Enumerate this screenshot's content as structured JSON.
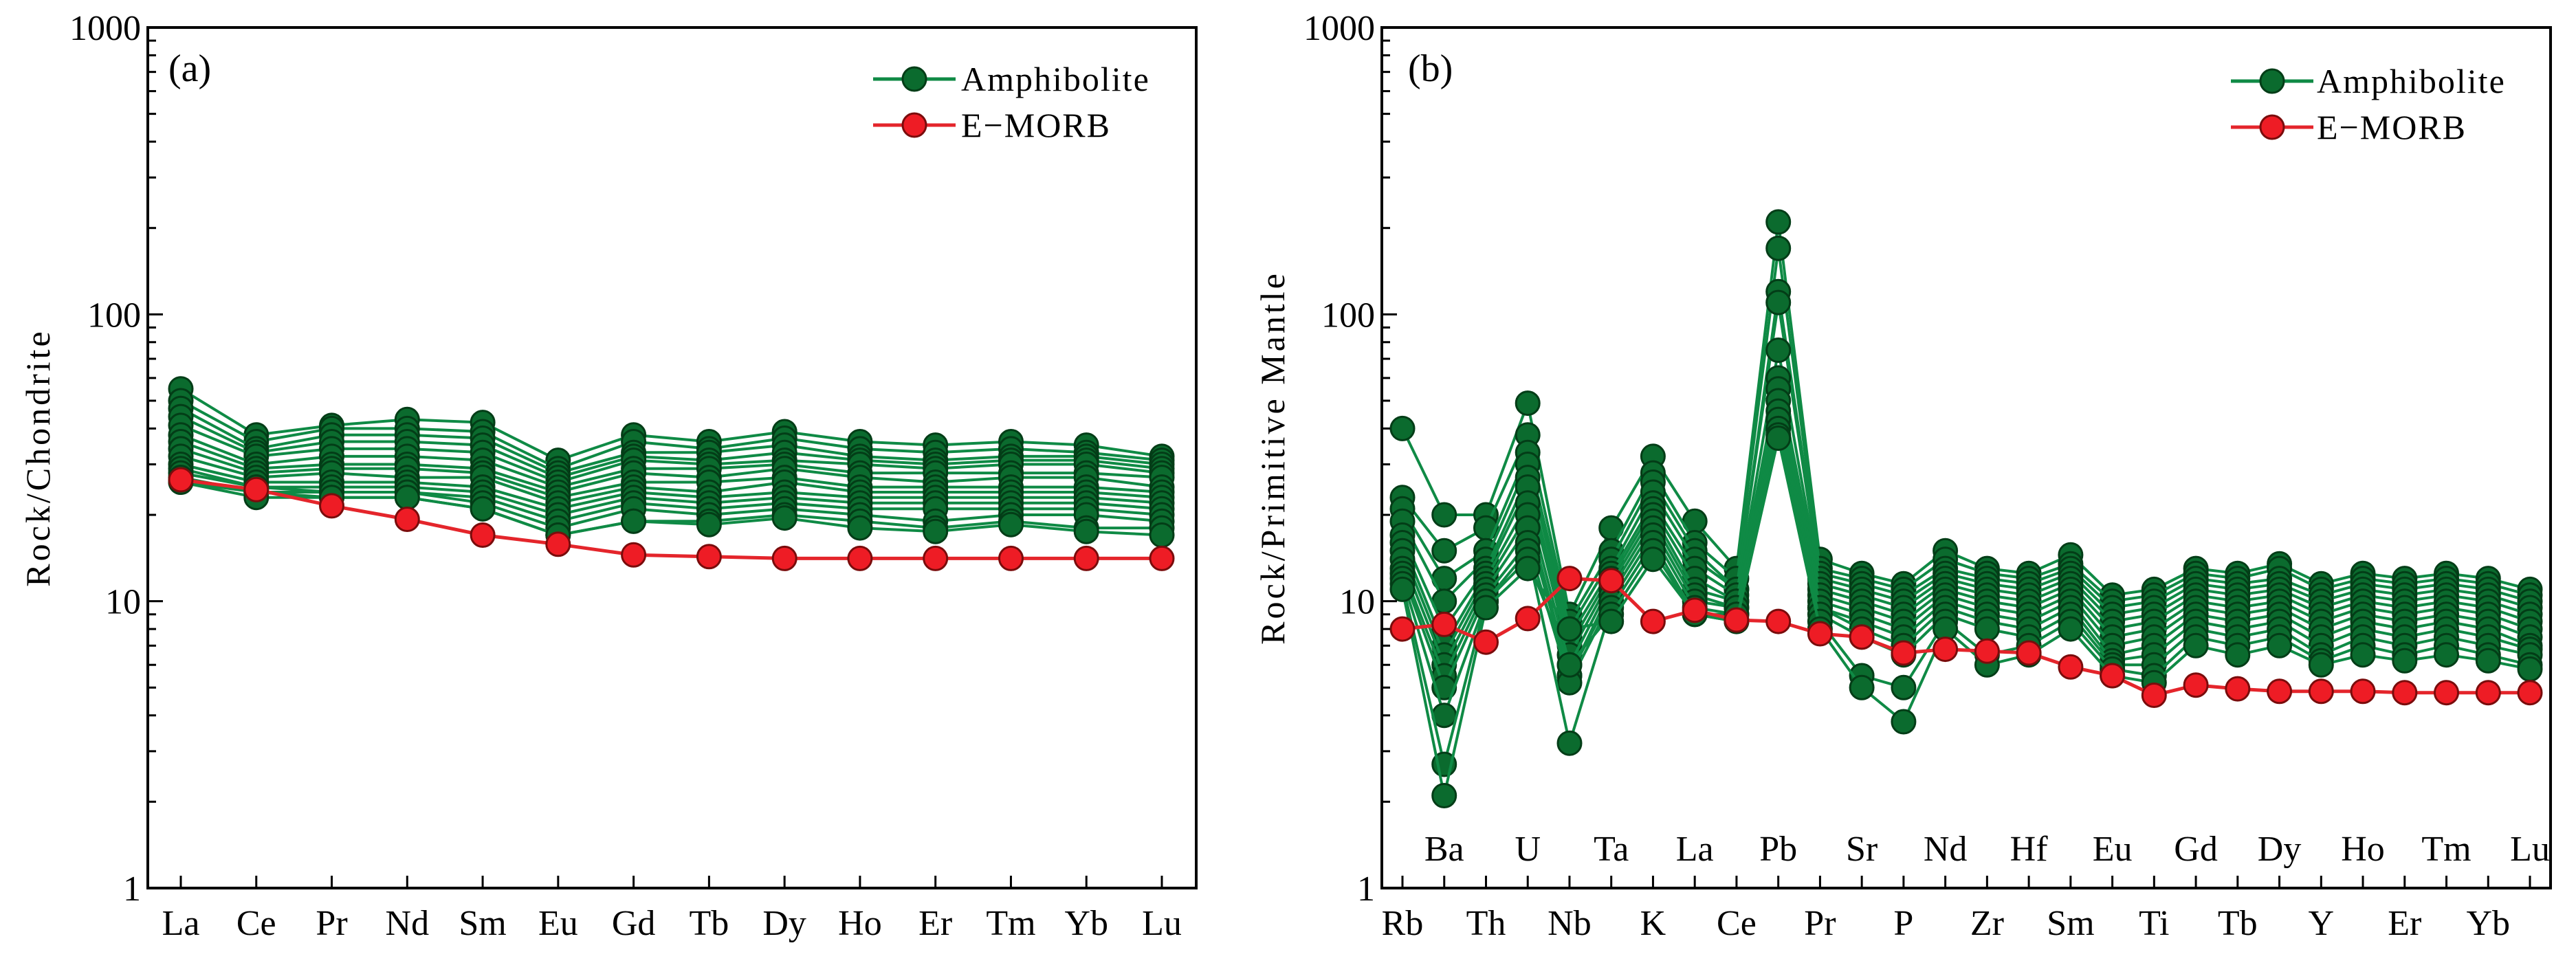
{
  "chart_data": [
    {
      "type": "line",
      "panel": "(a)",
      "ylabel": "Rock/Chondrite",
      "xlabel": "",
      "yscale": "log",
      "ylim": [
        1,
        1000
      ],
      "yticks": [
        "1",
        "10",
        "100",
        "1000"
      ],
      "legend_position": "top-right",
      "grid": false,
      "categories": [
        "La",
        "Ce",
        "Pr",
        "Nd",
        "Sm",
        "Eu",
        "Gd",
        "Tb",
        "Dy",
        "Ho",
        "Er",
        "Tm",
        "Yb",
        "Lu"
      ],
      "category_label_rows": [
        0,
        0,
        0,
        0,
        0,
        0,
        0,
        0,
        0,
        0,
        0,
        0,
        0,
        0
      ],
      "series": [
        {
          "name": "Amphibolite",
          "group": "amphibolite",
          "values": [
            55,
            38,
            41,
            43,
            42,
            31,
            38,
            36,
            39,
            36,
            35,
            36,
            35,
            32
          ]
        },
        {
          "name": "",
          "group": "amphibolite",
          "values": [
            50,
            36,
            40,
            40,
            39,
            29,
            36,
            34,
            37,
            34,
            33,
            34,
            33,
            31
          ]
        },
        {
          "name": "",
          "group": "amphibolite",
          "values": [
            47,
            34,
            38,
            38,
            37,
            28,
            33,
            33,
            35,
            32,
            31,
            32,
            32,
            30
          ]
        },
        {
          "name": "",
          "group": "amphibolite",
          "values": [
            44,
            33,
            36,
            36,
            35,
            27,
            32,
            31,
            33,
            31,
            30,
            31,
            31,
            29
          ]
        },
        {
          "name": "",
          "group": "amphibolite",
          "values": [
            41,
            32,
            34,
            34,
            33,
            26,
            31,
            30,
            31,
            30,
            29,
            30,
            30,
            28
          ]
        },
        {
          "name": "",
          "group": "amphibolite",
          "values": [
            38,
            30,
            32,
            32,
            31,
            25,
            29,
            29,
            30,
            28,
            28,
            28,
            28,
            27
          ]
        },
        {
          "name": "",
          "group": "amphibolite",
          "values": [
            36,
            29,
            30,
            30,
            29,
            24,
            28,
            27,
            29,
            27,
            26,
            27,
            27,
            25
          ]
        },
        {
          "name": "",
          "group": "amphibolite",
          "values": [
            34,
            28,
            29,
            29,
            28,
            23,
            26,
            26,
            27,
            25,
            25,
            25,
            25,
            24
          ]
        },
        {
          "name": "",
          "group": "amphibolite",
          "values": [
            32,
            27,
            28,
            27,
            27,
            22,
            25,
            24,
            26,
            24,
            24,
            24,
            24,
            23
          ]
        },
        {
          "name": "",
          "group": "amphibolite",
          "values": [
            30,
            26,
            26,
            26,
            25,
            21,
            24,
            23,
            24,
            23,
            23,
            23,
            23,
            22
          ]
        },
        {
          "name": "",
          "group": "amphibolite",
          "values": [
            29,
            25,
            25,
            25,
            24,
            20,
            23,
            22,
            23,
            22,
            22,
            22,
            22,
            21
          ]
        },
        {
          "name": "",
          "group": "amphibolite",
          "values": [
            28,
            25,
            24,
            24,
            23,
            19,
            22,
            21,
            22,
            21,
            21,
            21,
            21,
            20
          ]
        },
        {
          "name": "",
          "group": "amphibolite",
          "values": [
            27,
            24,
            24,
            24,
            22,
            18,
            21,
            20,
            21,
            20,
            19,
            20,
            20,
            19
          ]
        },
        {
          "name": "",
          "group": "amphibolite",
          "values": [
            26,
            24,
            23,
            23,
            21,
            17,
            19,
            19,
            20,
            19,
            18,
            19,
            18,
            18
          ]
        },
        {
          "name": "",
          "group": "amphibolite",
          "values": [
            26,
            23,
            23,
            23,
            21,
            17,
            19,
            18.5,
            19.5,
            18,
            17.5,
            18.5,
            17.5,
            17
          ]
        },
        {
          "name": "E-MORB",
          "group": "emorb",
          "values": [
            26.5,
            24.5,
            21.5,
            19.3,
            17,
            15.8,
            14.5,
            14.3,
            14.1,
            14.1,
            14.1,
            14.1,
            14.1,
            14.1
          ]
        }
      ]
    },
    {
      "type": "line",
      "panel": "(b)",
      "ylabel": "Rock/Primitive Mantle",
      "xlabel": "",
      "yscale": "log",
      "ylim": [
        1,
        1000
      ],
      "yticks": [
        "1",
        "10",
        "100",
        "1000"
      ],
      "legend_position": "top-right",
      "grid": false,
      "categories": [
        "Rb",
        "Ba",
        "Th",
        "U",
        "Nb",
        "Ta",
        "K",
        "La",
        "Ce",
        "Pb",
        "Pr",
        "Sr",
        "P",
        "Nd",
        "Zr",
        "Hf",
        "Sm",
        "Eu",
        "Ti",
        "Gd",
        "Tb",
        "Dy",
        "Y",
        "Ho",
        "Er",
        "Tm",
        "Yb",
        "Lu"
      ],
      "category_label_rows": [
        0,
        1,
        0,
        1,
        0,
        1,
        0,
        1,
        0,
        1,
        0,
        1,
        0,
        1,
        0,
        1,
        0,
        1,
        0,
        1,
        0,
        1,
        0,
        1,
        0,
        1,
        0,
        1
      ],
      "series": [
        {
          "name": "Amphibolite",
          "group": "amphibolite",
          "values": [
            40,
            20,
            20,
            49,
            9,
            18,
            32,
            19,
            13,
            210,
            14,
            12.5,
            11.5,
            15,
            13,
            12.5,
            14.5,
            10.5,
            11,
            13,
            12.5,
            13.5,
            11.5,
            12.5,
            12,
            12.5,
            12,
            11
          ]
        },
        {
          "name": "",
          "group": "amphibolite",
          "values": [
            23,
            15,
            18,
            38,
            8.5,
            15,
            28,
            16,
            12,
            170,
            13,
            12,
            11,
            14,
            12.5,
            12,
            13.5,
            10,
            10.5,
            12.5,
            12,
            13,
            11,
            12,
            11.5,
            12,
            11.5,
            10.5
          ]
        },
        {
          "name": "",
          "group": "amphibolite",
          "values": [
            21,
            12,
            15,
            33,
            8,
            14,
            26,
            15,
            11,
            120,
            12.5,
            11.5,
            10.5,
            13,
            12,
            11.5,
            13,
            9.5,
            10,
            12,
            11.5,
            12,
            10.5,
            11.5,
            11,
            11.5,
            11,
            10
          ]
        },
        {
          "name": "",
          "group": "amphibolite",
          "values": [
            19,
            10,
            14,
            30,
            7.5,
            13,
            24,
            14,
            11,
            110,
            12,
            11,
            10,
            12.5,
            11.5,
            11,
            12.5,
            9,
            9.5,
            11.5,
            11,
            11.5,
            10,
            11,
            10.5,
            11,
            10.5,
            9.5
          ]
        },
        {
          "name": "",
          "group": "amphibolite",
          "values": [
            17,
            8,
            13,
            27,
            7,
            12.5,
            22,
            13,
            10.5,
            75,
            11.5,
            10.5,
            9.5,
            12,
            11,
            10.5,
            12,
            8.5,
            9,
            11,
            10.5,
            11,
            9.5,
            10.5,
            10,
            10.5,
            10,
            9
          ]
        },
        {
          "name": "",
          "group": "amphibolite",
          "values": [
            16,
            7,
            12.5,
            25,
            6.5,
            12,
            21,
            12,
            10,
            60,
            11,
            10,
            9,
            11.5,
            10.5,
            10,
            11.5,
            8,
            8.5,
            10.5,
            10,
            10.5,
            9,
            10,
            9.5,
            10,
            9.5,
            8.5
          ]
        },
        {
          "name": "",
          "group": "amphibolite",
          "values": [
            15,
            6.5,
            12,
            22,
            6,
            11.5,
            20,
            11,
            10,
            55,
            10.5,
            9.5,
            8.5,
            11,
            10,
            9.5,
            11,
            7.5,
            8,
            10,
            9.5,
            10,
            8.5,
            9.5,
            9,
            9.5,
            9,
            8
          ]
        },
        {
          "name": "",
          "group": "amphibolite",
          "values": [
            14,
            6,
            11.5,
            20,
            5.5,
            11,
            19,
            10.5,
            9.5,
            50,
            10,
            9,
            8,
            10.5,
            9.5,
            9,
            10.5,
            7,
            7.5,
            9.5,
            9,
            9.5,
            8,
            9,
            8.5,
            9,
            8.5,
            7.5
          ]
        },
        {
          "name": "",
          "group": "amphibolite",
          "values": [
            13,
            5.5,
            11,
            18,
            5.5,
            10.5,
            18,
            10,
            9.5,
            46,
            9.5,
            8.5,
            7.5,
            10,
            9,
            8.5,
            10,
            6.5,
            7,
            9,
            8.5,
            9,
            7.5,
            8.5,
            8,
            8.5,
            8,
            7
          ]
        },
        {
          "name": "",
          "group": "amphibolite",
          "values": [
            12.5,
            5,
            10.5,
            16,
            5.2,
            10,
            17,
            9.5,
            9,
            43,
            9.5,
            8,
            7,
            9.5,
            8.5,
            8,
            9.5,
            6.2,
            6.5,
            8.5,
            8,
            8.5,
            7,
            8,
            7.5,
            8,
            7.5,
            6.8
          ]
        },
        {
          "name": "",
          "group": "amphibolite",
          "values": [
            12,
            4,
            10,
            15,
            3.2,
            9.5,
            16,
            9,
            9,
            40,
            9,
            7.5,
            6.5,
            9,
            8,
            7.5,
            9,
            6,
            6,
            8,
            7.5,
            8,
            6.5,
            7.5,
            7,
            7.5,
            7,
            6.5
          ]
        },
        {
          "name": "",
          "group": "amphibolite",
          "values": [
            11.5,
            2.7,
            10,
            14,
            6,
            9,
            15,
            9,
            8.5,
            38,
            8.5,
            5.5,
            5,
            8.5,
            6.5,
            7,
            8.5,
            5.8,
            5.5,
            7.5,
            7,
            7.5,
            6.2,
            7,
            6.5,
            7,
            6.5,
            6
          ]
        },
        {
          "name": "",
          "group": "amphibolite",
          "values": [
            11,
            2.1,
            9.5,
            13,
            8,
            8.5,
            14,
            9,
            8.5,
            37,
            8,
            5,
            3.8,
            8,
            6,
            6.5,
            8,
            5.5,
            5.2,
            7,
            6.5,
            7,
            6,
            6.5,
            6.2,
            6.5,
            6.2,
            5.8
          ]
        },
        {
          "name": "E-MORB",
          "group": "emorb",
          "values": [
            8,
            8.3,
            7.2,
            8.7,
            12,
            11.8,
            8.5,
            9.3,
            8.6,
            8.5,
            7.7,
            7.5,
            6.6,
            6.8,
            6.7,
            6.6,
            5.9,
            5.5,
            4.7,
            5.1,
            4.95,
            4.85,
            4.85,
            4.85,
            4.8,
            4.8,
            4.8,
            4.8
          ]
        }
      ]
    }
  ],
  "colors": {
    "amphibolite_line": "#0f8a45",
    "amphibolite_marker": "#0b6b2e",
    "amphibolite_edge": "#033d17",
    "emorb_line": "#e4252b",
    "emorb_marker": "#ee1c25",
    "emorb_edge": "#7a0c0c"
  },
  "legend": {
    "amphibolite": "Amphibolite",
    "emorb": "E−MORB"
  }
}
